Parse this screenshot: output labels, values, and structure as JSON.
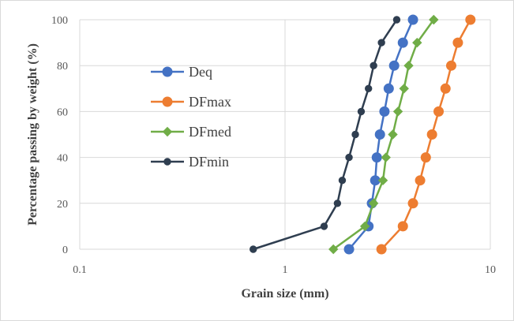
{
  "chart_data": {
    "type": "scatter",
    "xscale": "log",
    "xlabel": "Grain size (mm)",
    "ylabel": "Percentage passing by weight (%)",
    "xlim": [
      0.1,
      10
    ],
    "ylim": [
      0,
      100
    ],
    "xticks": [
      0.1,
      1,
      10
    ],
    "xtick_labels": [
      "0.1",
      "1",
      "10"
    ],
    "yticks": [
      0,
      20,
      40,
      60,
      80,
      100
    ],
    "ytick_labels": [
      "0",
      "20",
      "40",
      "60",
      "80",
      "100"
    ],
    "grid": "vertical and horizontal major gridlines",
    "legend": "inside, upper-left",
    "series": [
      {
        "name": "Deq",
        "color": "#4472C4",
        "marker": "circle",
        "x": [
          2.05,
          2.55,
          2.65,
          2.75,
          2.8,
          2.9,
          3.05,
          3.2,
          3.4,
          3.75,
          4.2
        ],
        "y": [
          0,
          10,
          20,
          30,
          40,
          50,
          60,
          70,
          80,
          90,
          100
        ]
      },
      {
        "name": "DFmax",
        "color": "#ED7D31",
        "marker": "circle",
        "x": [
          2.95,
          3.75,
          4.2,
          4.55,
          4.85,
          5.2,
          5.6,
          6.05,
          6.45,
          6.95,
          8.0
        ],
        "y": [
          0,
          10,
          20,
          30,
          40,
          50,
          60,
          70,
          80,
          90,
          100
        ]
      },
      {
        "name": "DFmed",
        "color": "#70AD47",
        "marker": "diamond",
        "x": [
          1.72,
          2.45,
          2.7,
          3.0,
          3.1,
          3.35,
          3.55,
          3.8,
          4.0,
          4.4,
          5.3
        ],
        "y": [
          0,
          10,
          20,
          30,
          40,
          50,
          60,
          70,
          80,
          90,
          100
        ]
      },
      {
        "name": "DFmin",
        "color": "#2F3E50",
        "marker": "circle",
        "x": [
          0.7,
          1.55,
          1.8,
          1.9,
          2.05,
          2.2,
          2.35,
          2.55,
          2.7,
          2.95,
          3.5
        ],
        "y": [
          0,
          10,
          20,
          30,
          40,
          50,
          60,
          70,
          80,
          90,
          100
        ]
      }
    ]
  }
}
